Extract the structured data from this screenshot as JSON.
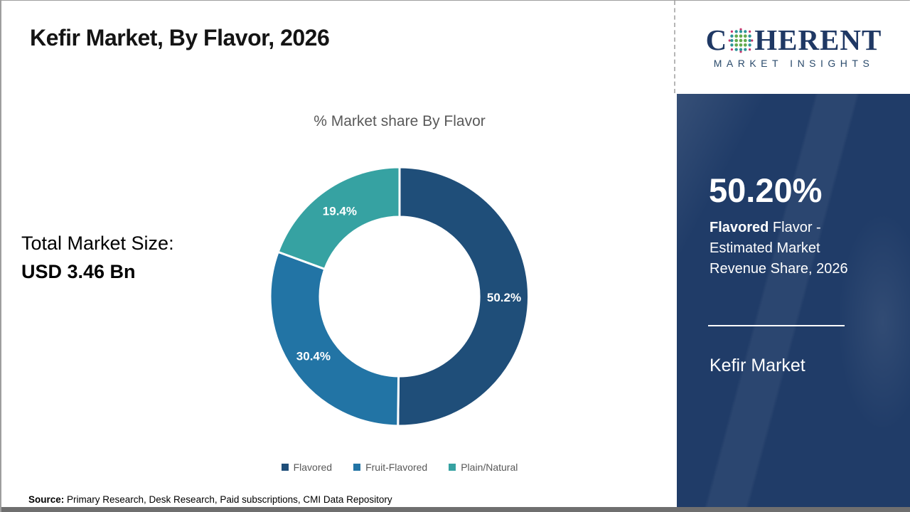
{
  "page": {
    "title": "Kefir Market, By Flavor, 2026"
  },
  "logo": {
    "brand_part1": "C",
    "brand_part2": "HERENT",
    "subtitle": "MARKET INSIGHTS",
    "brand_color": "#1F3864",
    "globe_colors": {
      "teal": "#2D9599",
      "green": "#62AA4E",
      "pink": "#C9356E"
    }
  },
  "left_panel": {
    "total_label": "Total Market Size:",
    "total_value": "USD 3.46 Bn"
  },
  "chart_data": {
    "type": "pie",
    "donut": true,
    "title": "% Market share By Flavor",
    "start_angle_deg": 0,
    "direction": "clockwise",
    "legend_position": "bottom",
    "segments": [
      {
        "label": "Flavored",
        "value": 50.2,
        "display": "50.2%",
        "color": "#1F4E79"
      },
      {
        "label": "Fruit-Flavored",
        "value": 30.4,
        "display": "30.4%",
        "color": "#2274A5"
      },
      {
        "label": "Plain/Natural",
        "value": 19.4,
        "display": "19.4%",
        "color": "#36A2A2"
      }
    ]
  },
  "sidebar": {
    "background_color": "#203C68",
    "highlight_value": "50.20%",
    "highlight_bold": "Flavored",
    "highlight_rest": " Flavor - Estimated Market Revenue Share, 2026",
    "footer_title": "Kefir Market"
  },
  "source": {
    "label": "Source:",
    "text": " Primary Research, Desk Research, Paid subscriptions, CMI Data Repository"
  }
}
